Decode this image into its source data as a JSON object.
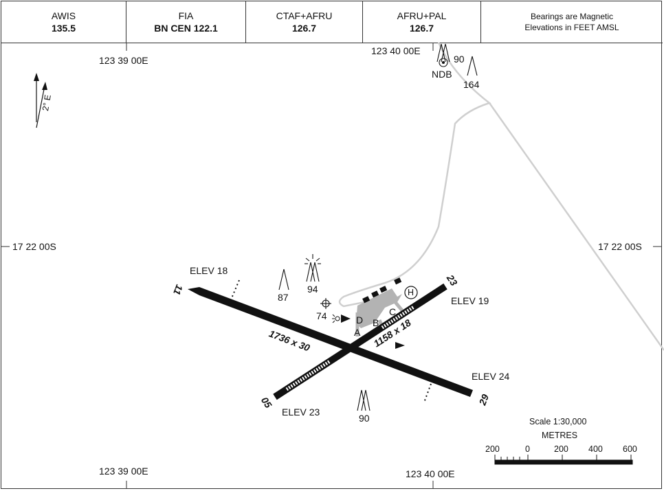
{
  "header": {
    "awis": {
      "label": "AWIS",
      "value": "135.5"
    },
    "fia": {
      "label": "FIA",
      "value": "BN CEN 122.1"
    },
    "ctaf": {
      "label": "CTAF+AFRU",
      "value": "126.7"
    },
    "afru": {
      "label": "AFRU+PAL",
      "value": "126.7"
    },
    "note_line1": "Bearings are Magnetic",
    "note_line2": "Elevations in FEET AMSL"
  },
  "grid": {
    "lon_top_left": "123 39 00E",
    "lon_top_right": "123 40 00E",
    "lon_bottom_left": "123 39 00E",
    "lon_bottom_right": "123 40 00E",
    "lat_left": "17 22 00S",
    "lat_right": "17 22 00S"
  },
  "magnetic": {
    "variation": "2° E"
  },
  "navaid": {
    "name": "NDB"
  },
  "obstacles": {
    "ndb_mast": "90",
    "north": "164",
    "west": "87",
    "lighted": "94",
    "wdi": "74",
    "south": "90"
  },
  "runways": {
    "main": {
      "end_west": "11",
      "end_east": "29",
      "dims": "1736 x 30",
      "elev_west": "ELEV 18",
      "elev_east": "ELEV 24"
    },
    "cross": {
      "end_sw": "05",
      "end_ne": "23",
      "dims": "1158 x 18",
      "elev_sw": "ELEV 23",
      "elev_ne": "ELEV 19"
    }
  },
  "taxiways": [
    "A",
    "B",
    "C",
    "D"
  ],
  "heliport": "H",
  "scale": {
    "title": "Scale 1:30,000",
    "unit": "METRES",
    "ticks": [
      "200",
      "0",
      "200",
      "400",
      "600"
    ]
  },
  "colors": {
    "road": "#cfcfcf",
    "apron": "#b3b3b3",
    "runway": "#111111"
  }
}
